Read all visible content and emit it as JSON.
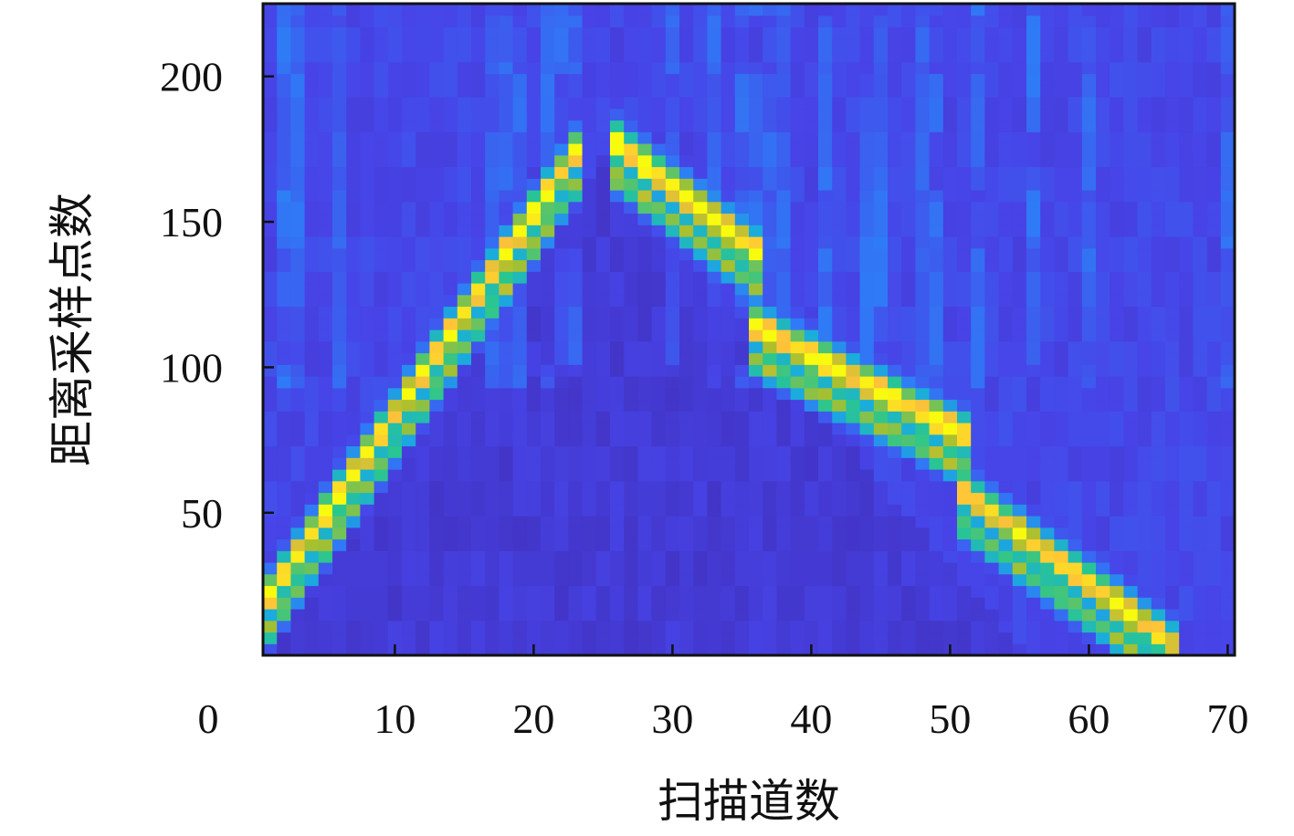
{
  "chart_data": {
    "type": "heatmap",
    "xlabel": "扫描道数",
    "ylabel": "距离采样点数",
    "xlim": [
      0,
      70
    ],
    "ylim": [
      1,
      225
    ],
    "x_ticks": [
      0,
      10,
      20,
      30,
      40,
      50,
      60,
      70
    ],
    "y_ticks": [
      50,
      100,
      150,
      200
    ],
    "grid": false,
    "colormap": [
      "#3e26a8",
      "#4744e8",
      "#2f7bf6",
      "#1aaddb",
      "#2ac68f",
      "#a9c02e",
      "#ffc23a",
      "#f9fb0e"
    ],
    "columns": {
      "start": 1,
      "end": 70,
      "step": 1
    },
    "rows": {
      "start": 1,
      "end": 225,
      "step": 4
    },
    "hyperbola_peaks": [
      {
        "apex_x": 25,
        "apex_y": 182,
        "left_slope": 7.0,
        "right_slope": 5.6,
        "peak": 1.0
      }
    ],
    "reflection_bands": [
      {
        "x_range": [
          1,
          23
        ],
        "y_at_start": 20,
        "y_at_end": 172,
        "peak": 0.9
      },
      {
        "x_range": [
          26,
          36
        ],
        "y_at_start": 175,
        "y_at_end": 138,
        "peak": 0.95
      },
      {
        "x_range": [
          36,
          51
        ],
        "y_at_start": 112,
        "y_at_end": 75,
        "peak": 0.9
      },
      {
        "x_range": [
          51,
          66
        ],
        "y_at_start": 55,
        "y_at_end": 3,
        "peak": 0.85
      }
    ]
  }
}
